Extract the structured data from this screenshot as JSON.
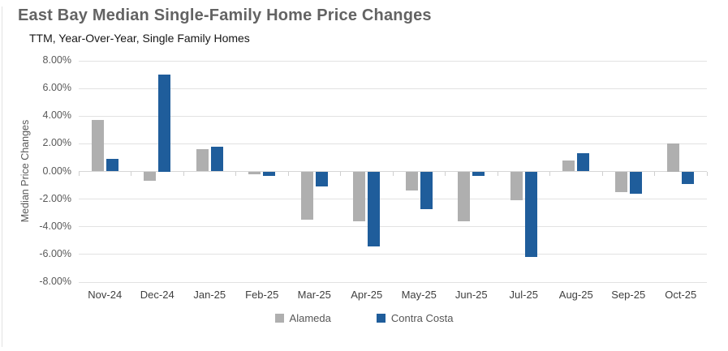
{
  "chart_data": {
    "type": "bar",
    "title": "East Bay Median Single-Family Home Price Changes",
    "subtitle": "TTM, Year-Over-Year, Single Family Homes",
    "ylabel": "Median Price Changes",
    "xlabel": "",
    "categories": [
      "Nov-24",
      "Dec-24",
      "Jan-25",
      "Feb-25",
      "Mar-25",
      "Apr-25",
      "May-25",
      "Jun-25",
      "Jul-25",
      "Aug-25",
      "Sep-25",
      "Oct-25"
    ],
    "series": [
      {
        "name": "Alameda",
        "color": "#afafaf",
        "values": [
          3.7,
          -0.7,
          1.6,
          -0.2,
          -3.5,
          -3.6,
          -1.4,
          -3.6,
          -2.1,
          0.8,
          -1.5,
          2.0
        ]
      },
      {
        "name": "Contra Costa",
        "color": "#1f5d9b",
        "values": [
          0.9,
          7.0,
          1.8,
          -0.3,
          -1.1,
          -5.4,
          -2.7,
          -0.3,
          -6.2,
          1.3,
          -1.6,
          -0.9
        ]
      }
    ],
    "ylim": [
      -8,
      8
    ],
    "ytick_step": 2,
    "ytick_format": "percent_2dp",
    "grid": true,
    "legend_position": "bottom-center",
    "colors": {
      "gridline": "#e2e2e2",
      "zero_line": "#d6d6d6",
      "title_text": "#636363",
      "axis_text": "#595959"
    }
  }
}
